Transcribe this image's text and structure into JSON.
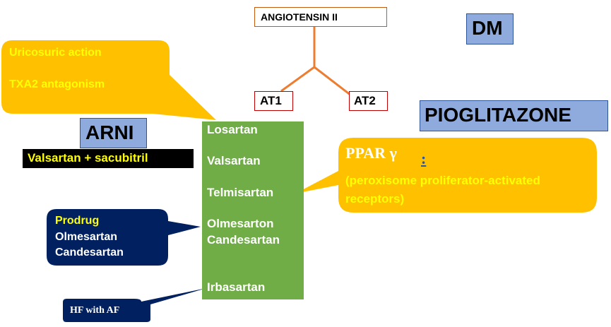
{
  "hierarchy": {
    "root": "ANGIOTENSIN II",
    "receptor_1": "AT1",
    "receptor_2": "AT2"
  },
  "labels": {
    "dm": "DM",
    "pioglitazone": "PIOGLITAZONE",
    "arni": "ARNI",
    "arni_combo": "Valsartan + sacubitril"
  },
  "drugs": [
    "Losartan",
    "Valsartan",
    "Telmisartan",
    "Olmesarton",
    "Candesartan",
    "Irbasartan"
  ],
  "callouts": {
    "losartan_note": {
      "line1": "Uricosuric action",
      "line2": "TXA2 antagonism"
    },
    "prodrug_note": {
      "title": "Prodrug",
      "line1": "Olmesartan",
      "line2": "Candesartan"
    },
    "telmisartan_note": {
      "title": "PPAR γ",
      "marker": ":",
      "detail": "(peroxisome proliferator-activated receptors)"
    },
    "irbesartan_note": {
      "text": "HF with AF"
    }
  },
  "colors": {
    "callout_yellow_orange": "#ffc000",
    "callout_navy": "#002060",
    "blue_label": "#8faadc",
    "green_list": "#70ad47",
    "connector_orange": "#ed7d31",
    "yellow_text": "#ffff00"
  }
}
